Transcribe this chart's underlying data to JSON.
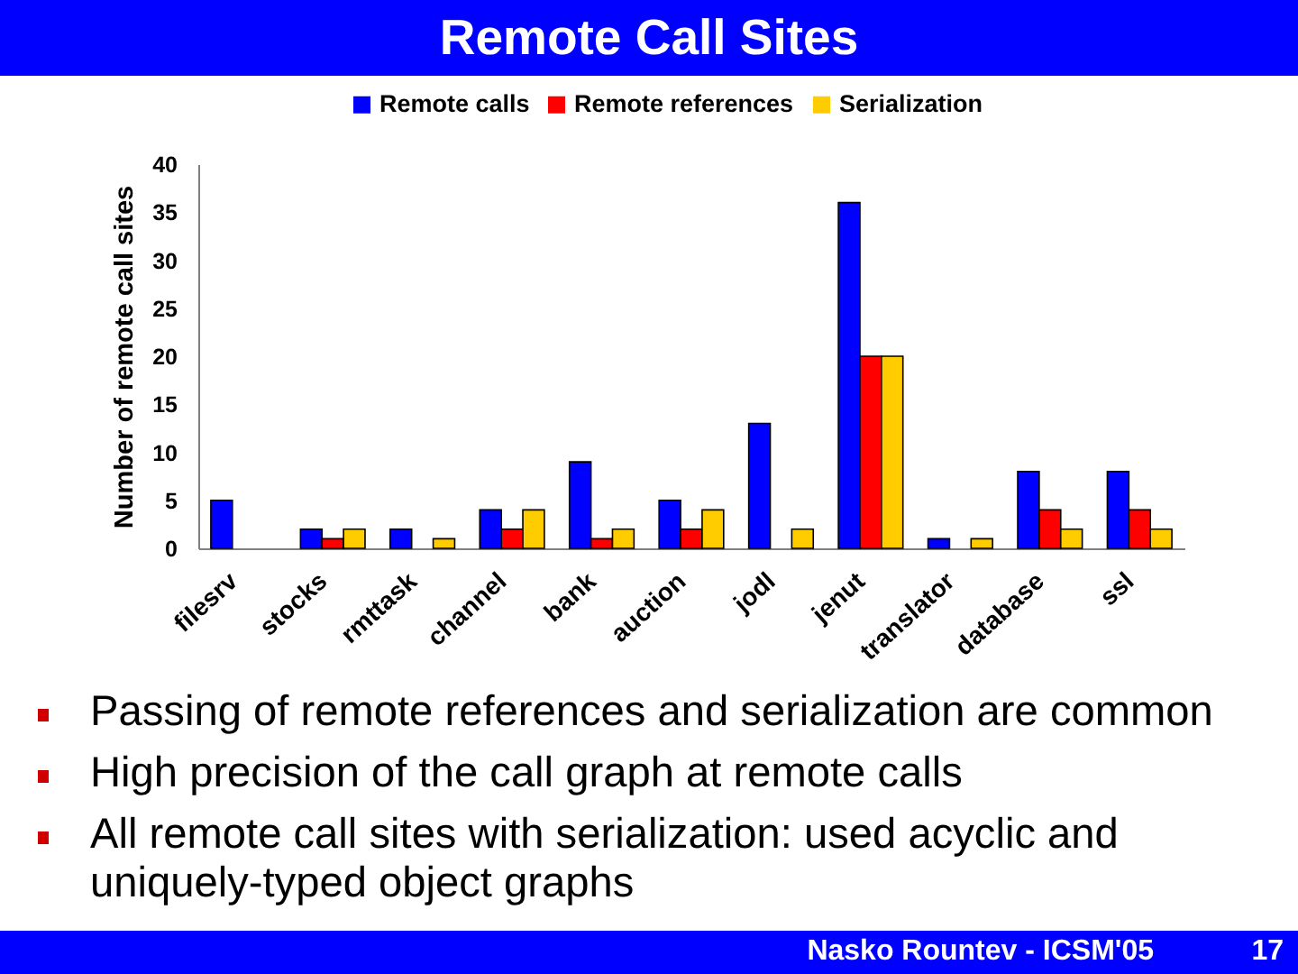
{
  "chart_data": {
    "type": "bar",
    "title": "Remote Call Sites",
    "ylabel": "Number of remote call sites",
    "categories": [
      "filesrv",
      "stocks",
      "rmttask",
      "channel",
      "bank",
      "auction",
      "jodl",
      "jenut",
      "translator",
      "database",
      "ssl"
    ],
    "series": [
      {
        "name": "Remote calls",
        "color": "#0000ff",
        "values": [
          5,
          2,
          2,
          4,
          9,
          5,
          13,
          36,
          1,
          8,
          8
        ]
      },
      {
        "name": "Remote references",
        "color": "#ff0000",
        "values": [
          0,
          1,
          0,
          2,
          1,
          2,
          0,
          20,
          0,
          4,
          4
        ]
      },
      {
        "name": "Serialization",
        "color": "#ffcc00",
        "values": [
          0,
          2,
          1,
          4,
          2,
          4,
          2,
          20,
          1,
          2,
          2
        ]
      }
    ],
    "ylim": [
      0,
      40
    ],
    "yticks": [
      0,
      5,
      10,
      15,
      20,
      25,
      30,
      35,
      40
    ],
    "grid": false,
    "legend": "top",
    "annotations": [
      "Passing of remote references and serialization are common",
      "High precision of the call graph at remote calls",
      "All remote call sites with serialization: used acyclic and uniquely-typed object graphs",
      "Nasko Rountev - ICSM'05",
      "17"
    ]
  }
}
